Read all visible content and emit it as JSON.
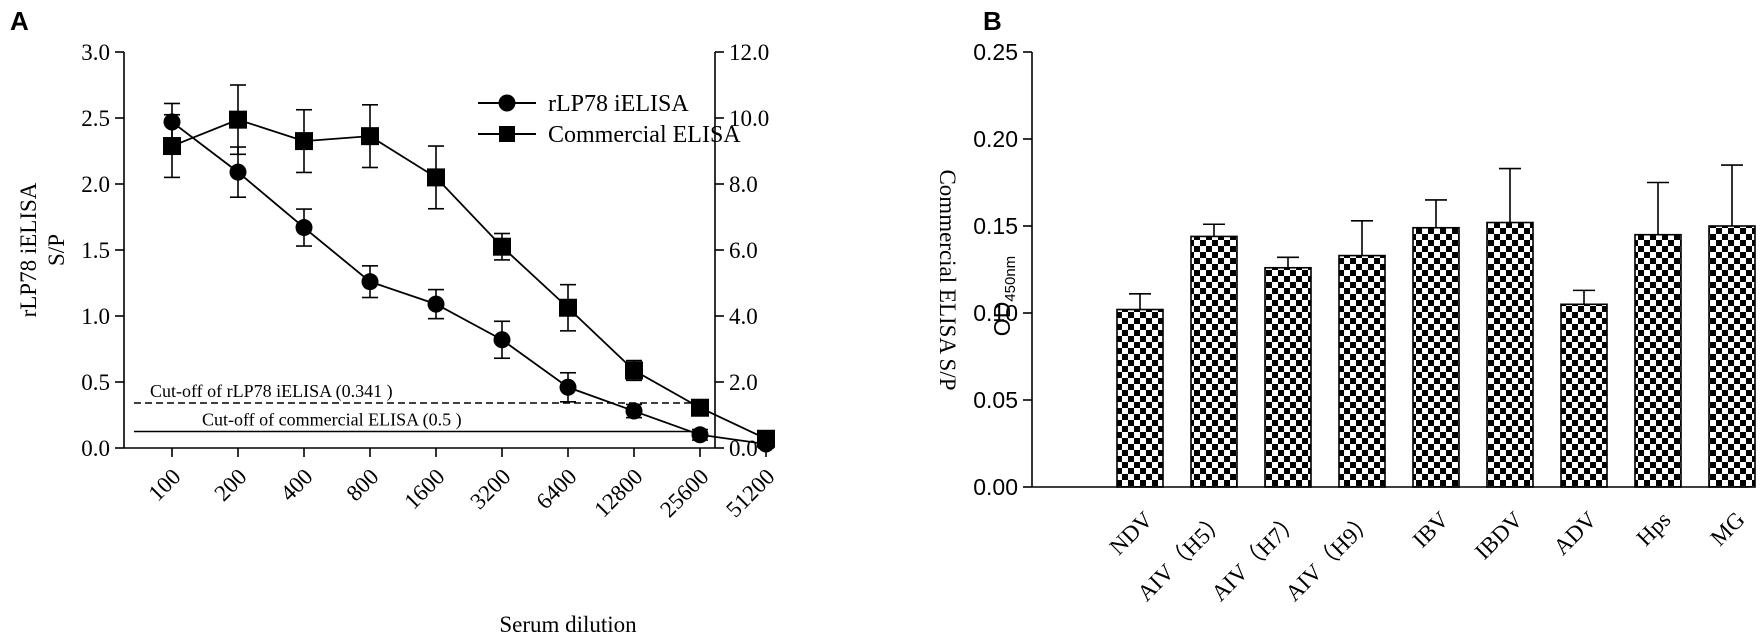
{
  "panel_a_label": "A",
  "panel_b_label": "B",
  "chart_data": [
    {
      "id": "A",
      "type": "line",
      "title": "",
      "xlabel": "Serum dilution",
      "ylabel_left": [
        "rLP78 iELISA",
        "S/P"
      ],
      "ylabel_right": "Commercial ELISA S/P",
      "categories": [
        "100",
        "200",
        "400",
        "800",
        "1600",
        "3200",
        "6400",
        "12800",
        "25600",
        "51200"
      ],
      "ylim_left": [
        0,
        3.0
      ],
      "yticks_left": [
        "0.0",
        "0.5",
        "1.0",
        "1.5",
        "2.0",
        "2.5",
        "3.0"
      ],
      "ylim_right": [
        0,
        12.0
      ],
      "yticks_right": [
        "0.0",
        "2.0",
        "4.0",
        "6.0",
        "8.0",
        "10.0",
        "12.0"
      ],
      "series": [
        {
          "name": "rLP78 iELISA",
          "marker": "circle",
          "axis": "left",
          "values": [
            2.47,
            2.09,
            1.67,
            1.26,
            1.09,
            0.82,
            0.46,
            0.28,
            0.1,
            0.03
          ],
          "errors": [
            0.14,
            0.19,
            0.14,
            0.12,
            0.11,
            0.14,
            0.11,
            0.05,
            0.04,
            0.03
          ]
        },
        {
          "name": "Commercial ELISA",
          "marker": "square",
          "axis": "right",
          "values": [
            9.15,
            9.95,
            9.3,
            9.45,
            8.2,
            6.1,
            4.25,
            2.35,
            1.22,
            0.28
          ],
          "errors": [
            0.95,
            1.05,
            0.95,
            0.95,
            0.95,
            0.4,
            0.7,
            0.3,
            0.1,
            0.1
          ]
        }
      ],
      "cutoffs": [
        {
          "label": "Cut-off of rLP78 iELISA (0.341 )",
          "value": 0.341,
          "axis": "left",
          "style": "dashed"
        },
        {
          "label": "Cut-off of commercial ELISA (0.5 )",
          "value": 0.5,
          "axis": "right",
          "style": "solid"
        }
      ],
      "legend_position": "top-right"
    },
    {
      "id": "B",
      "type": "bar",
      "title": "",
      "xlabel": "",
      "ylabel": "OD",
      "ylabel_sub": "450nm",
      "categories": [
        "NDV",
        "AIV（H5）",
        "AIV（H7）",
        "AIV（H9）",
        "IBV",
        "IBDV",
        "ADV",
        "Hps",
        "MG"
      ],
      "values": [
        0.102,
        0.144,
        0.126,
        0.133,
        0.149,
        0.152,
        0.105,
        0.145,
        0.15
      ],
      "errors": [
        0.009,
        0.007,
        0.006,
        0.02,
        0.016,
        0.031,
        0.008,
        0.03,
        0.035
      ],
      "ylim": [
        0,
        0.25
      ],
      "yticks": [
        "0.00",
        "0.05",
        "0.10",
        "0.15",
        "0.20",
        "0.25"
      ],
      "fill": "checkerboard"
    }
  ]
}
